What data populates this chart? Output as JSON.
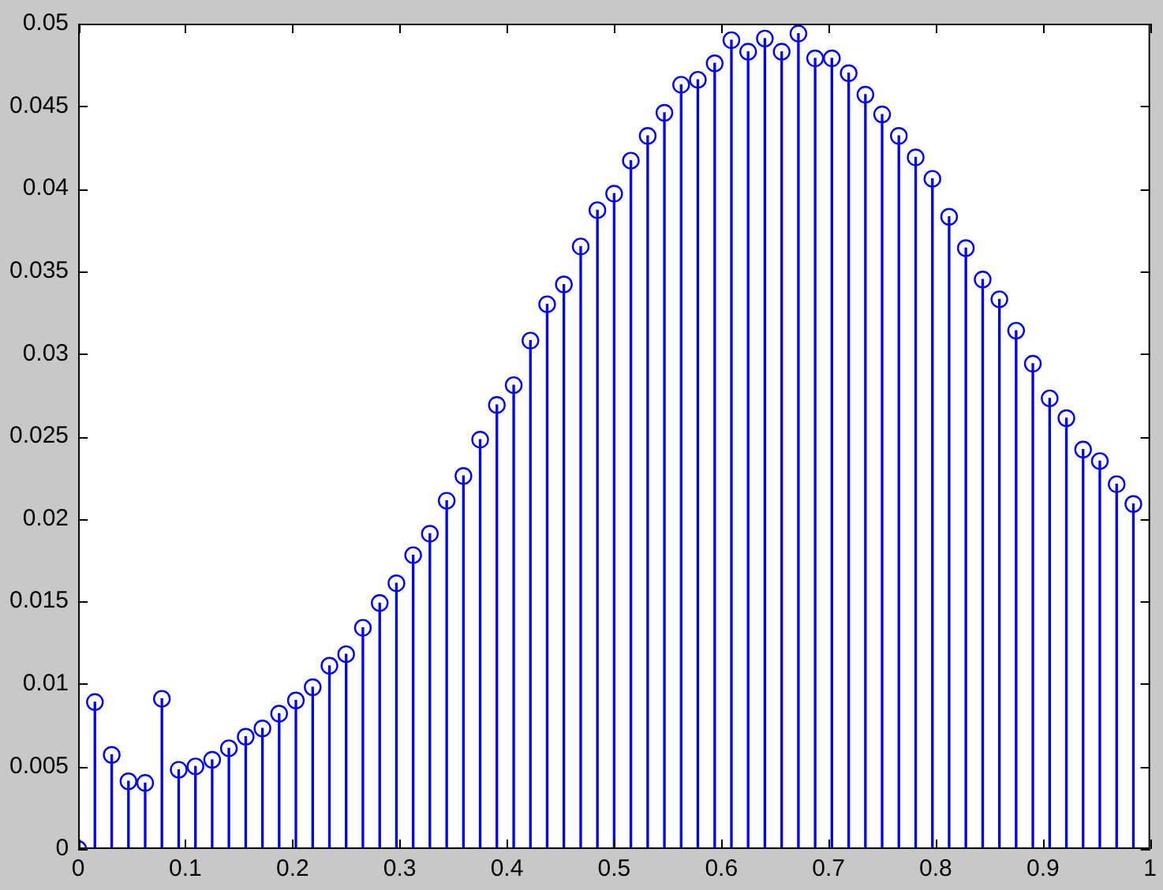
{
  "chart_data": {
    "type": "lollipop",
    "marker": "circle",
    "color": "#0000ff",
    "x": [
      0,
      0.0156,
      0.0313,
      0.0469,
      0.0625,
      0.0781,
      0.0938,
      0.1094,
      0.125,
      0.1406,
      0.1563,
      0.1719,
      0.1875,
      0.2031,
      0.2188,
      0.2344,
      0.25,
      0.2656,
      0.2813,
      0.2969,
      0.3125,
      0.3281,
      0.3438,
      0.3594,
      0.375,
      0.3906,
      0.4063,
      0.4219,
      0.4375,
      0.4531,
      0.4688,
      0.4844,
      0.5,
      0.5156,
      0.5313,
      0.5469,
      0.5625,
      0.5781,
      0.5938,
      0.6094,
      0.625,
      0.6406,
      0.6563,
      0.6719,
      0.6875,
      0.7031,
      0.7188,
      0.7344,
      0.75,
      0.7656,
      0.7813,
      0.7969,
      0.8125,
      0.8281,
      0.8438,
      0.8594,
      0.875,
      0.8906,
      0.9063,
      0.9219,
      0.9375,
      0.9531,
      0.9688,
      0.9844
    ],
    "values": [
      0,
      0.0089,
      0.0057,
      0.0041,
      0.004,
      0.0091,
      0.0048,
      0.005,
      0.0054,
      0.0061,
      0.0068,
      0.0073,
      0.0082,
      0.009,
      0.0098,
      0.0111,
      0.0118,
      0.0134,
      0.0149,
      0.0161,
      0.0178,
      0.0191,
      0.0211,
      0.0226,
      0.0248,
      0.0269,
      0.0281,
      0.0308,
      0.033,
      0.0342,
      0.0365,
      0.0387,
      0.0397,
      0.0417,
      0.0432,
      0.0446,
      0.0463,
      0.0466,
      0.0476,
      0.049,
      0.0483,
      0.0491,
      0.0483,
      0.0494,
      0.0479,
      0.0479,
      0.047,
      0.0457,
      0.0445,
      0.0432,
      0.0419,
      0.0406,
      0.0383,
      0.0364,
      0.0345,
      0.0333,
      0.0314,
      0.0294,
      0.0273,
      0.0261,
      0.0242,
      0.0235,
      0.0221,
      0.0209
    ],
    "xlim": [
      0,
      1
    ],
    "xticks": [
      0,
      0.1,
      0.2,
      0.3,
      0.4,
      0.5,
      0.6,
      0.7,
      0.8,
      0.9,
      1
    ],
    "ylim": [
      0,
      0.05
    ],
    "yticks": [
      0,
      0.005,
      0.01,
      0.015,
      0.02,
      0.025,
      0.03,
      0.035,
      0.04,
      0.045,
      0.05
    ]
  }
}
